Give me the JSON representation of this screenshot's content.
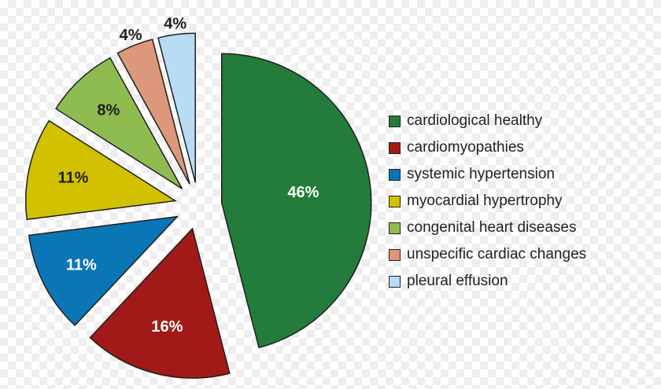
{
  "chart_data": {
    "type": "pie",
    "categories": [
      "cardiological healthy",
      "cardiomyopathies",
      "systemic hypertension",
      "myocardial hypertrophy",
      "congenital heart diseases",
      "unspecific cardiac changes",
      "pleural effusion"
    ],
    "values": [
      46,
      16,
      11,
      11,
      8,
      4,
      4
    ],
    "labels": [
      "46%",
      "16%",
      "11%",
      "11%",
      "8%",
      "4%",
      "4%"
    ],
    "colors": [
      "#237c3c",
      "#a11a17",
      "#0b76b6",
      "#d2c100",
      "#8fbc50",
      "#dd977a",
      "#b8dcf4"
    ],
    "exploded": true,
    "legend_position": "right"
  }
}
